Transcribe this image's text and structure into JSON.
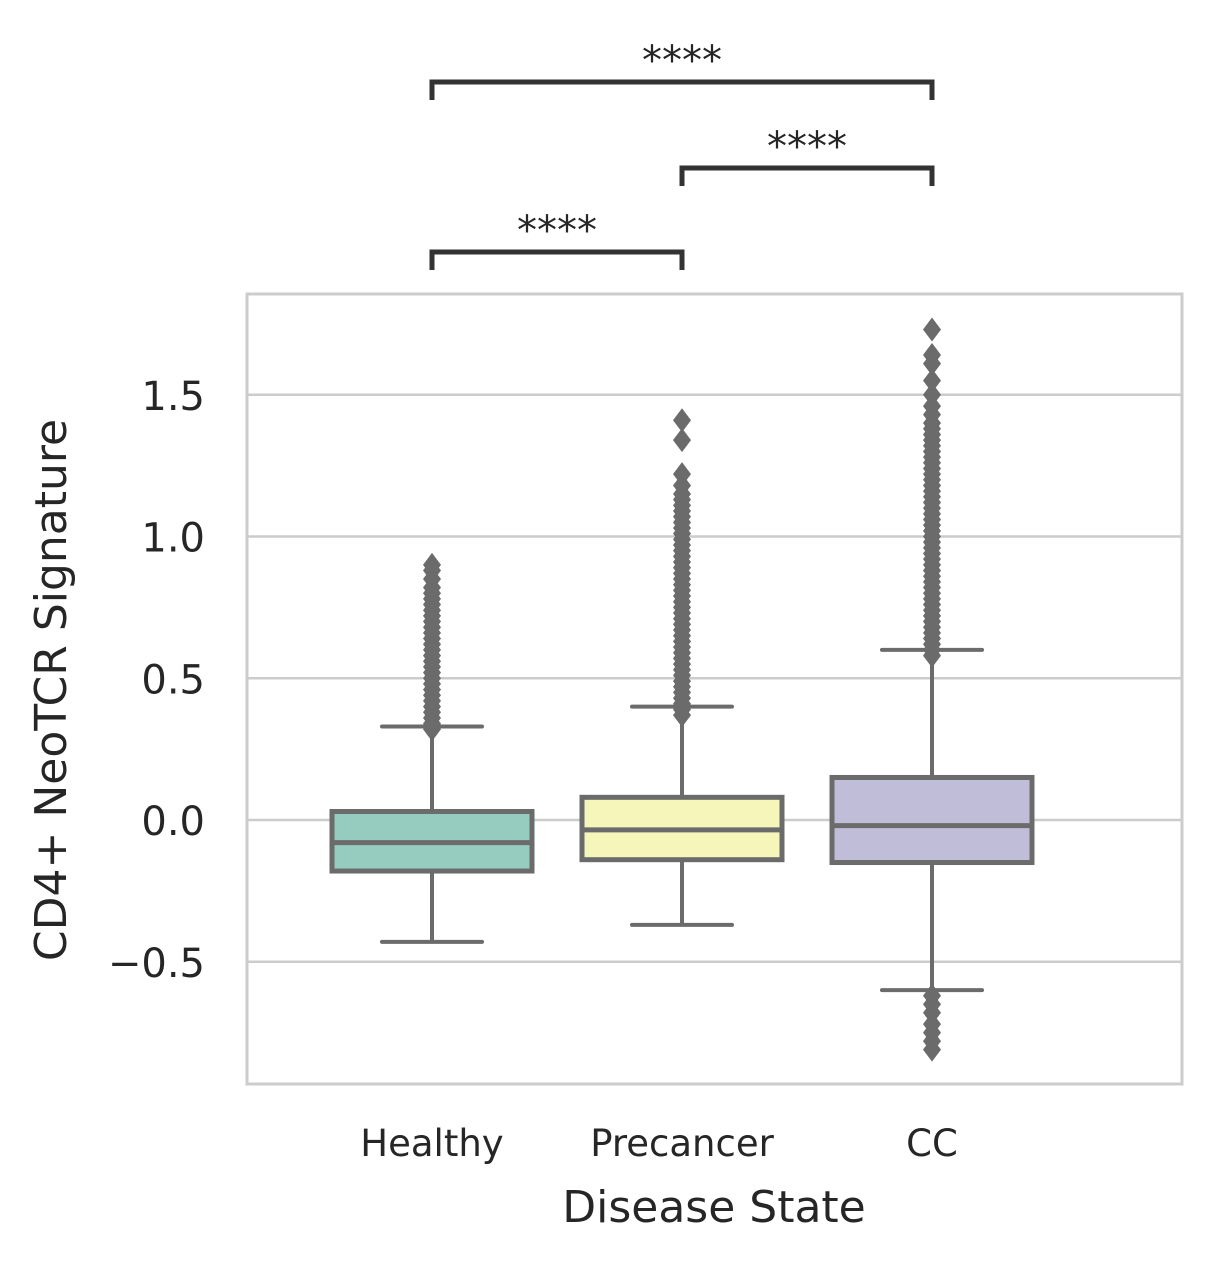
{
  "chart_data": {
    "type": "box",
    "title": "",
    "xlabel": "Disease State",
    "ylabel": "CD4+ NeoTCR Signature",
    "ylim": [
      -0.93,
      1.86
    ],
    "yticks": [
      -0.5,
      0.0,
      0.5,
      1.0,
      1.5
    ],
    "ytick_labels": [
      "−0.5",
      "0.0",
      "0.5",
      "1.0",
      "1.5"
    ],
    "grid": "horizontal",
    "categories": [
      "Healthy",
      "Precancer",
      "CC"
    ],
    "boxes": [
      {
        "name": "Healthy",
        "color": "#96cbc0",
        "whisker_low": -0.43,
        "q1": -0.18,
        "median": -0.08,
        "q3": 0.03,
        "whisker_high": 0.33,
        "outliers_high": [
          0.32,
          0.34,
          0.36,
          0.38,
          0.4,
          0.42,
          0.44,
          0.46,
          0.48,
          0.5,
          0.52,
          0.54,
          0.56,
          0.58,
          0.6,
          0.62,
          0.64,
          0.66,
          0.68,
          0.7,
          0.72,
          0.74,
          0.76,
          0.78,
          0.8,
          0.82,
          0.85,
          0.88,
          0.9
        ],
        "outliers_low": []
      },
      {
        "name": "Precancer",
        "color": "#f6f6bb",
        "whisker_low": -0.37,
        "q1": -0.14,
        "median": -0.035,
        "q3": 0.08,
        "whisker_high": 0.4,
        "outliers_high": [
          0.37,
          0.39,
          0.41,
          0.43,
          0.45,
          0.47,
          0.49,
          0.51,
          0.53,
          0.55,
          0.57,
          0.59,
          0.61,
          0.63,
          0.65,
          0.67,
          0.69,
          0.71,
          0.73,
          0.75,
          0.77,
          0.79,
          0.81,
          0.83,
          0.85,
          0.87,
          0.89,
          0.91,
          0.93,
          0.95,
          0.97,
          0.99,
          1.01,
          1.03,
          1.05,
          1.07,
          1.09,
          1.11,
          1.13,
          1.15,
          1.18,
          1.22,
          1.34,
          1.41
        ],
        "outliers_low": []
      },
      {
        "name": "CC",
        "color": "#c0bdd8",
        "whisker_low": -0.6,
        "q1": -0.15,
        "median": -0.02,
        "q3": 0.15,
        "whisker_high": 0.6,
        "outliers_high": [
          0.58,
          0.6,
          0.62,
          0.64,
          0.66,
          0.68,
          0.7,
          0.72,
          0.74,
          0.76,
          0.78,
          0.8,
          0.82,
          0.84,
          0.86,
          0.88,
          0.9,
          0.92,
          0.94,
          0.96,
          0.98,
          1.0,
          1.02,
          1.04,
          1.06,
          1.08,
          1.1,
          1.12,
          1.14,
          1.16,
          1.18,
          1.2,
          1.22,
          1.24,
          1.26,
          1.28,
          1.3,
          1.32,
          1.34,
          1.36,
          1.38,
          1.4,
          1.43,
          1.46,
          1.5,
          1.55,
          1.61,
          1.64,
          1.73
        ],
        "outliers_low": [
          -0.62,
          -0.65,
          -0.68,
          -0.72,
          -0.75,
          -0.78,
          -0.81
        ]
      }
    ],
    "annotations": [
      {
        "from": 0,
        "to": 1,
        "label": "****",
        "level": 1
      },
      {
        "from": 1,
        "to": 2,
        "label": "****",
        "level": 2
      },
      {
        "from": 0,
        "to": 2,
        "label": "****",
        "level": 3
      }
    ]
  }
}
